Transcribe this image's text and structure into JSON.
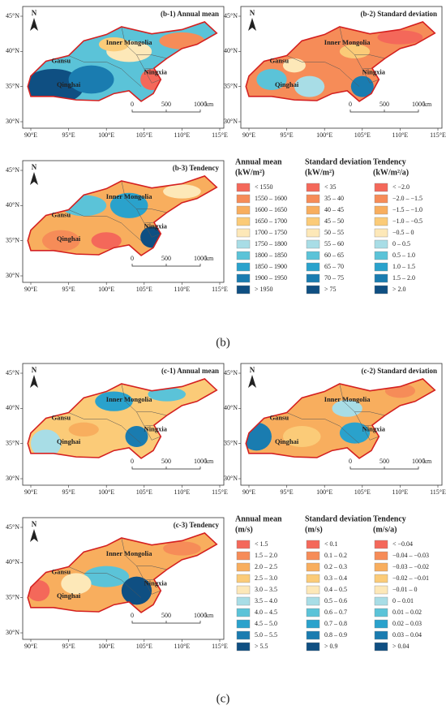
{
  "groups": [
    {
      "label": "(b)",
      "panels": [
        "(b-1)  Annual mean",
        "(b-2)  Standard deviation",
        "(b-3)  Tendency"
      ],
      "legend": [
        {
          "title": "Annual mean",
          "unit": "(kW/m²)",
          "items": [
            "< 1550",
            "1550 – 1600",
            "1600 – 1650",
            "1650 – 1700",
            "1700 – 1750",
            "1750 – 1800",
            "1800 – 1850",
            "1850 – 1900",
            "1900 – 1950",
            "> 1950"
          ]
        },
        {
          "title": "Standard deviation",
          "unit": "(kW/m²)",
          "items": [
            "< 35",
            "35 – 40",
            "40 – 45",
            "45 – 50",
            "50 – 55",
            "55 – 60",
            "60 – 65",
            "65 – 70",
            "70 – 75",
            "> 75"
          ]
        },
        {
          "title": "Tendency",
          "unit": "(kW/m²/a)",
          "items": [
            "< −2.0",
            "−2.0 – −1.5",
            "−1.5 – −1.0",
            "−1.0 – −0.5",
            "−0.5 – 0",
            "0 – 0.5",
            "0.5 – 1.0",
            "1.0 – 1.5",
            "1.5 – 2.0",
            "> 2.0"
          ]
        }
      ]
    },
    {
      "label": "(c)",
      "panels": [
        "(c-1)  Annual mean",
        "(c-2)  Standard deviation",
        "(c-3)  Tendency"
      ],
      "legend": [
        {
          "title": "Annual mean",
          "unit": "(m/s)",
          "items": [
            "< 1.5",
            "1.5 – 2.0",
            "2.0 – 2.5",
            "2.5 – 3.0",
            "3.0 – 3.5",
            "3.5 – 4.0",
            "4.0 – 4.5",
            "4.5 – 5.0",
            "5.0 – 5.5",
            "> 5.5"
          ]
        },
        {
          "title": "Standard deviation",
          "unit": "(m/s)",
          "items": [
            "< 0.1",
            "0.1 – 0.2",
            "0.2 – 0.3",
            "0.3 – 0.4",
            "0.4 – 0.5",
            "0.5 – 0.6",
            "0.6 – 0.7",
            "0.7 – 0.8",
            "0.8 – 0.9",
            "> 0.9"
          ]
        },
        {
          "title": "Tendency",
          "unit": "(m/s/a)",
          "items": [
            "< −0.04",
            "−0.04 – −0.03",
            "−0.03 – −0.02",
            "−0.02 – −0.01",
            "−0.01 – 0",
            "0 – 0.01",
            "0.01 – 0.02",
            "0.02 – 0.03",
            "0.03 – 0.04",
            "> 0.04"
          ]
        }
      ]
    }
  ],
  "legend_colors": [
    "#f4685a",
    "#f68c58",
    "#f8ae5e",
    "#fbcb78",
    "#fde8b8",
    "#a8dde6",
    "#5bc3d8",
    "#2aa2cc",
    "#1a7cb0",
    "#0f4f82"
  ],
  "map": {
    "north": "N",
    "lat_labels": [
      "45°N",
      "40°N",
      "35°N",
      "30°N"
    ],
    "lon_labels": [
      "90°E",
      "95°E",
      "100°E",
      "105°E",
      "110°E",
      "115°E"
    ],
    "places": [
      "Inner Mongolia",
      "Gansu",
      "Ningxia",
      "Qinghai"
    ],
    "scale": [
      "0",
      "500",
      "1000",
      "km"
    ]
  }
}
